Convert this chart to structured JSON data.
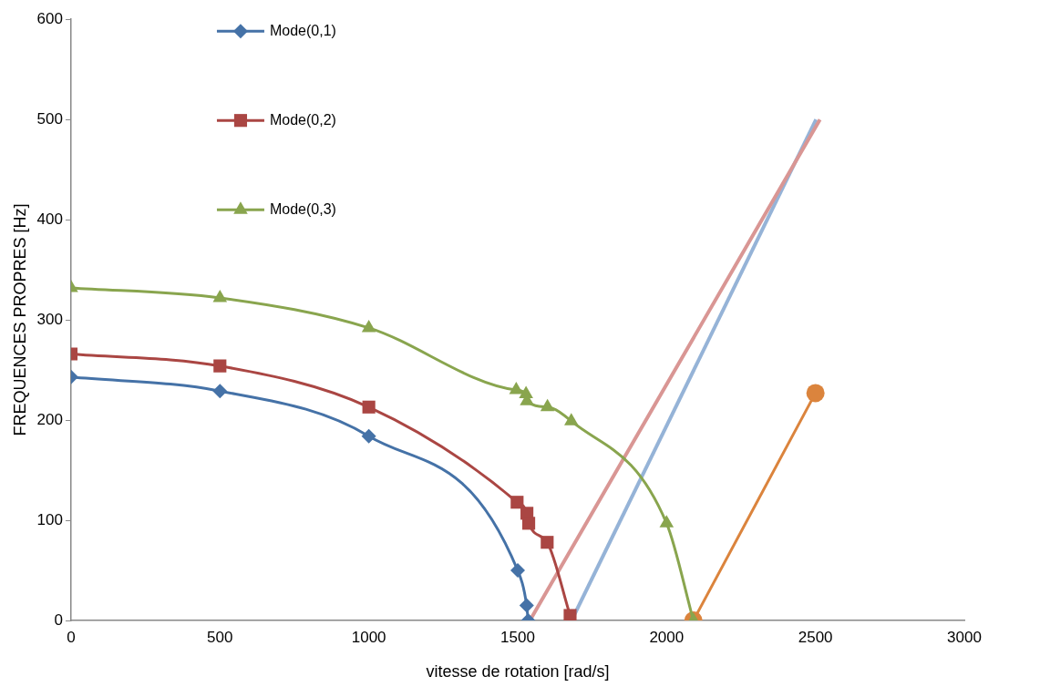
{
  "chart_data": {
    "type": "line",
    "xlabel": "vitesse de rotation [rad/s]",
    "ylabel": "FREQUENCES PROPRES [Hz]",
    "xlim": [
      0,
      3000
    ],
    "xticks": [
      0,
      500,
      1000,
      1500,
      2000,
      2500,
      3000
    ],
    "ylim": [
      0,
      600
    ],
    "yticks": [
      0,
      100,
      200,
      300,
      400,
      500,
      600
    ],
    "grid": false,
    "legend": "top left",
    "series": [
      {
        "name": "Mode(0,1)",
        "color": "#4572a7",
        "marker": "diamond",
        "x": [
          0,
          500,
          1000,
          1500,
          1530,
          1535
        ],
        "values": [
          243,
          229,
          184,
          50,
          15,
          0
        ]
      },
      {
        "name": "Mode(0,2)",
        "color": "#aa4643",
        "marker": "square",
        "x": [
          0,
          500,
          1000,
          1498,
          1531,
          1537,
          1599,
          1676
        ],
        "values": [
          266,
          254,
          213,
          118,
          107,
          97,
          78,
          5
        ]
      },
      {
        "name": "Mode(0,3)",
        "color": "#89a54e",
        "marker": "triangle",
        "x": [
          0,
          500,
          1000,
          1495,
          1528,
          1531,
          1600,
          1680,
          2000,
          2090
        ],
        "values": [
          332,
          322,
          292,
          230,
          226,
          219,
          213,
          199,
          97,
          0
        ]
      },
      {
        "color": "#d99694",
        "marker": "none",
        "x": [
          1541,
          2515
        ],
        "values": [
          0,
          500
        ]
      },
      {
        "color": "#95b3d7",
        "marker": "none",
        "x": [
          1681,
          2502
        ],
        "values": [
          0,
          500
        ]
      },
      {
        "color": "#db843d",
        "marker": "circle",
        "x": [
          2090,
          2500
        ],
        "values": [
          0,
          227
        ]
      }
    ]
  }
}
